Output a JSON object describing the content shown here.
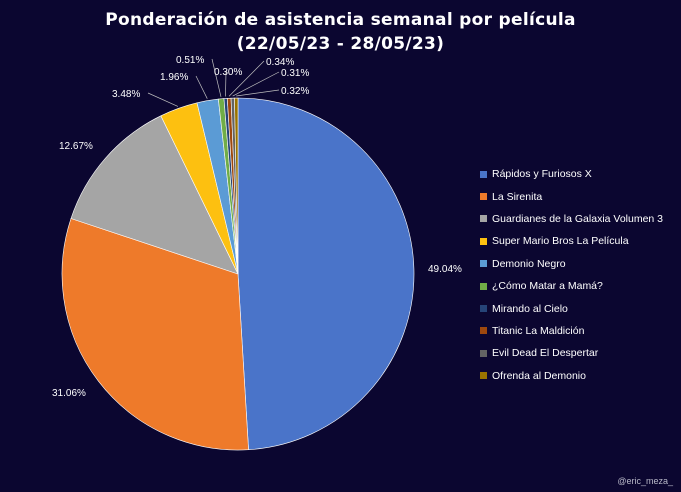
{
  "chart_data": {
    "type": "pie",
    "title_line1": "Ponderación de asistencia semanal por película",
    "title_line2": "(22/05/23 - 28/05/23)",
    "slices": [
      {
        "name": "Rápidos y Furiosos X",
        "value": 49.04,
        "label": "49.04%",
        "color": "#4a74c9"
      },
      {
        "name": "La Sirenita",
        "value": 31.06,
        "label": "31.06%",
        "color": "#ee7a2a"
      },
      {
        "name": "Guardianes de la Galaxia Volumen 3",
        "value": 12.67,
        "label": "12.67%",
        "color": "#a5a5a5"
      },
      {
        "name": "Super Mario Bros La Película",
        "value": 3.48,
        "label": "3.48%",
        "color": "#fdc010"
      },
      {
        "name": "Demonio Negro",
        "value": 1.96,
        "label": "1.96%",
        "color": "#5b9bd5"
      },
      {
        "name": "¿Cómo Matar a Mamá?",
        "value": 0.51,
        "label": "0.51%",
        "color": "#70ad47"
      },
      {
        "name": "Mirando al Cielo",
        "value": 0.3,
        "label": "0.30%",
        "color": "#264478"
      },
      {
        "name": "Titanic La Maldición",
        "value": 0.34,
        "label": "0.34%",
        "color": "#9e480e"
      },
      {
        "name": "Evil Dead El Despertar",
        "value": 0.31,
        "label": "0.31%",
        "color": "#636363"
      },
      {
        "name": "Ofrenda al Demonio",
        "value": 0.32,
        "label": "0.32%",
        "color": "#997300"
      }
    ],
    "legend_position": "right"
  },
  "watermark": "@eric_meza_"
}
